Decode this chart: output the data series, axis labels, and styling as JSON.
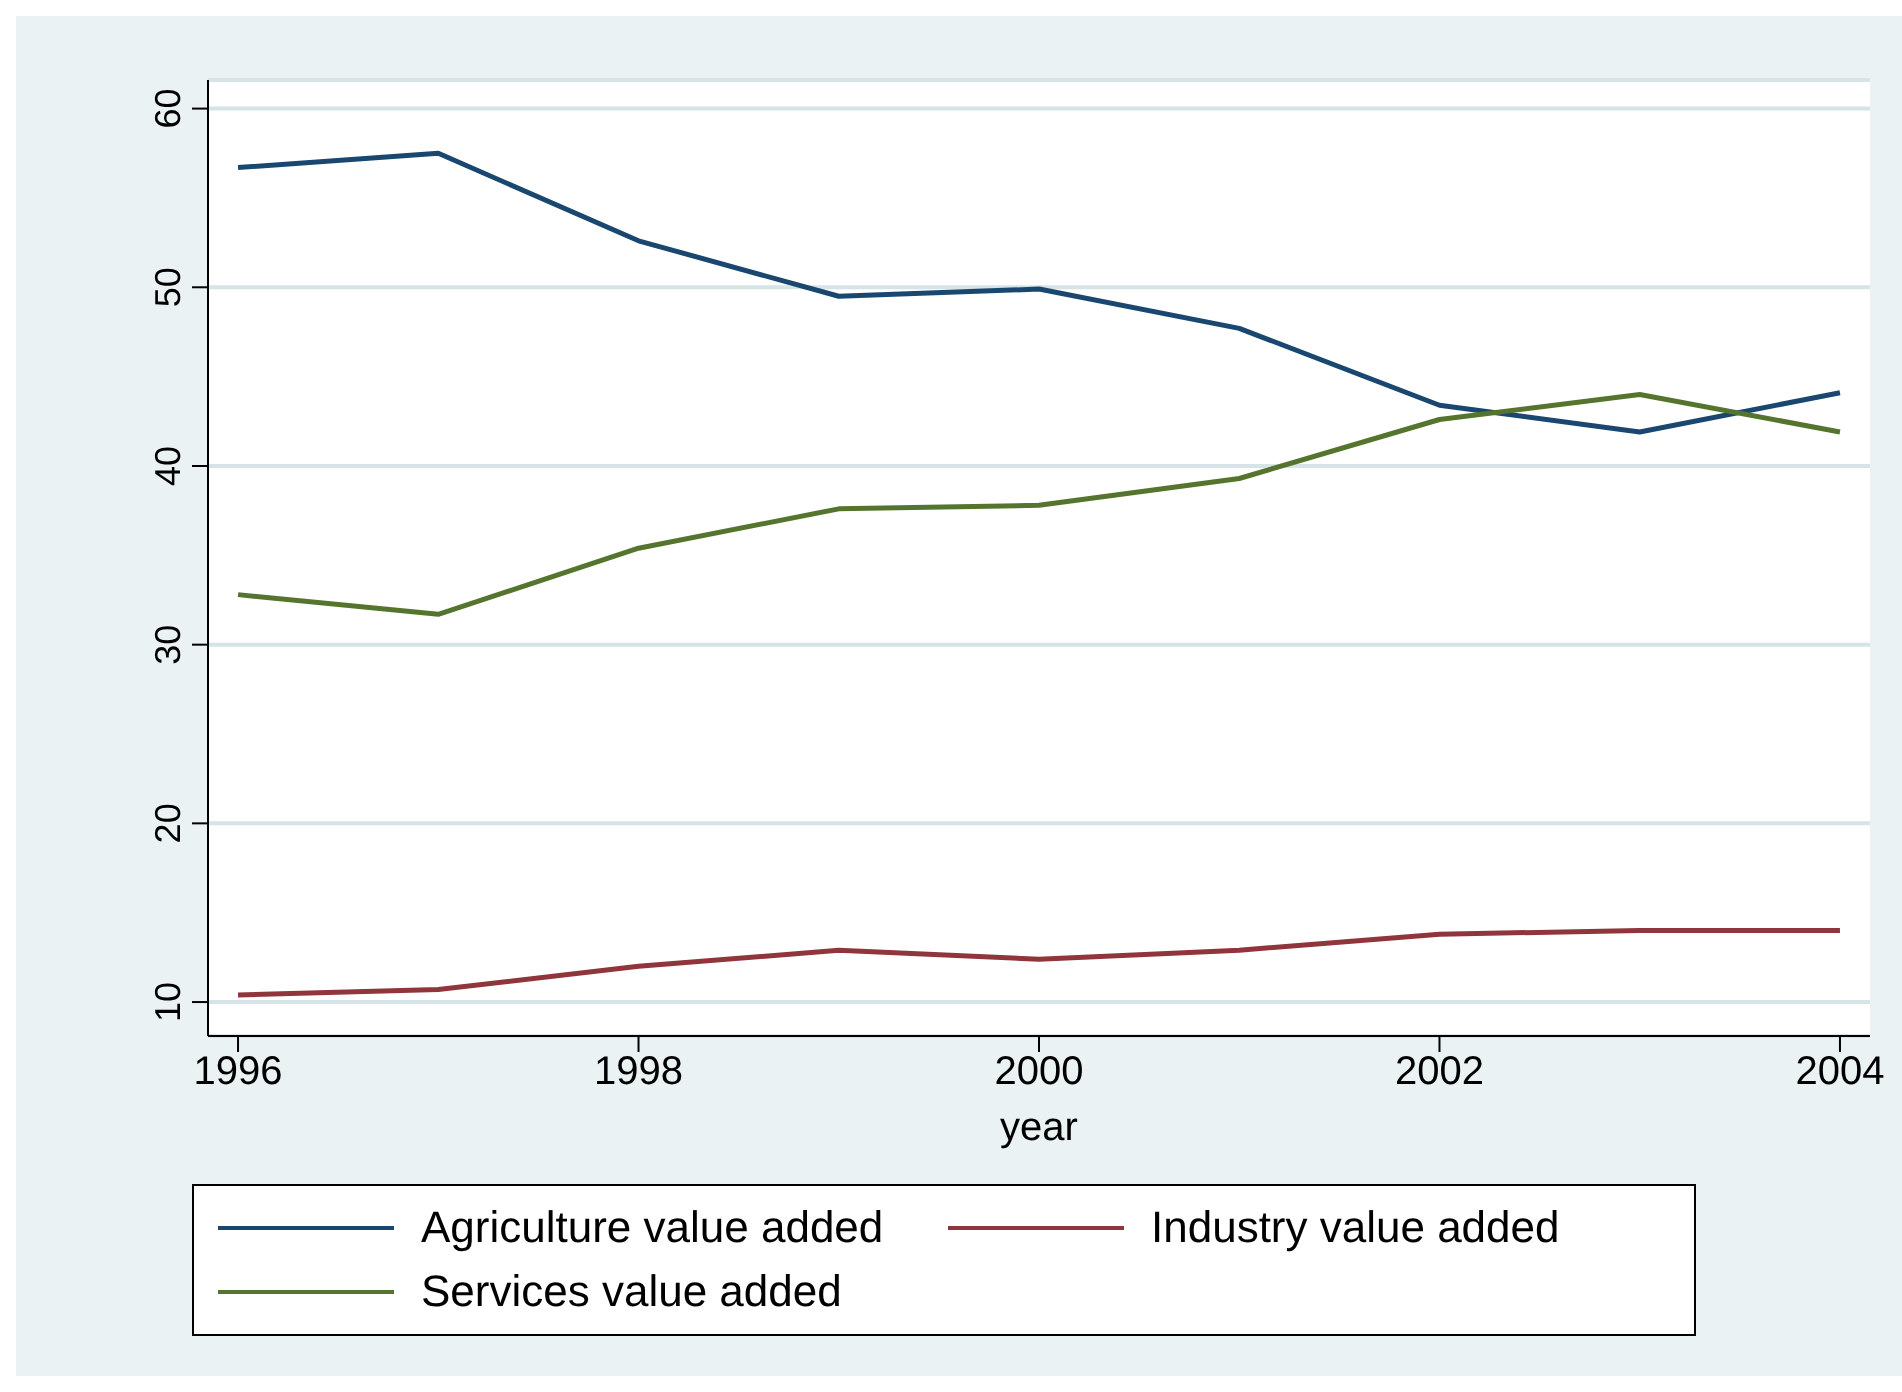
{
  "chart_data": {
    "type": "line",
    "xlabel": "year",
    "x": [
      1996,
      1997,
      1998,
      1999,
      2000,
      2001,
      2002,
      2003,
      2004
    ],
    "series": [
      {
        "name": "Agriculture value added",
        "color": "#1a476f",
        "values": [
          56.7,
          57.5,
          52.6,
          49.5,
          49.9,
          47.7,
          43.4,
          41.9,
          44.1
        ]
      },
      {
        "name": "Industry value added",
        "color": "#90353b",
        "values": [
          10.4,
          10.7,
          12.0,
          12.9,
          12.4,
          12.9,
          13.8,
          14.0,
          14.0
        ]
      },
      {
        "name": "Services value added",
        "color": "#55752f",
        "values": [
          32.8,
          31.7,
          35.4,
          37.6,
          37.8,
          39.3,
          42.6,
          44.0,
          41.9
        ]
      }
    ],
    "xlim": [
      1995.85,
      2004.15
    ],
    "xticks": [
      1996,
      1998,
      2000,
      2002,
      2004
    ],
    "ylim": [
      8.1,
      61.6
    ],
    "yticks": [
      10,
      20,
      30,
      40,
      50,
      60
    ],
    "grid": "y",
    "legend": "bottom",
    "marker": "none",
    "line_style": "solid"
  }
}
